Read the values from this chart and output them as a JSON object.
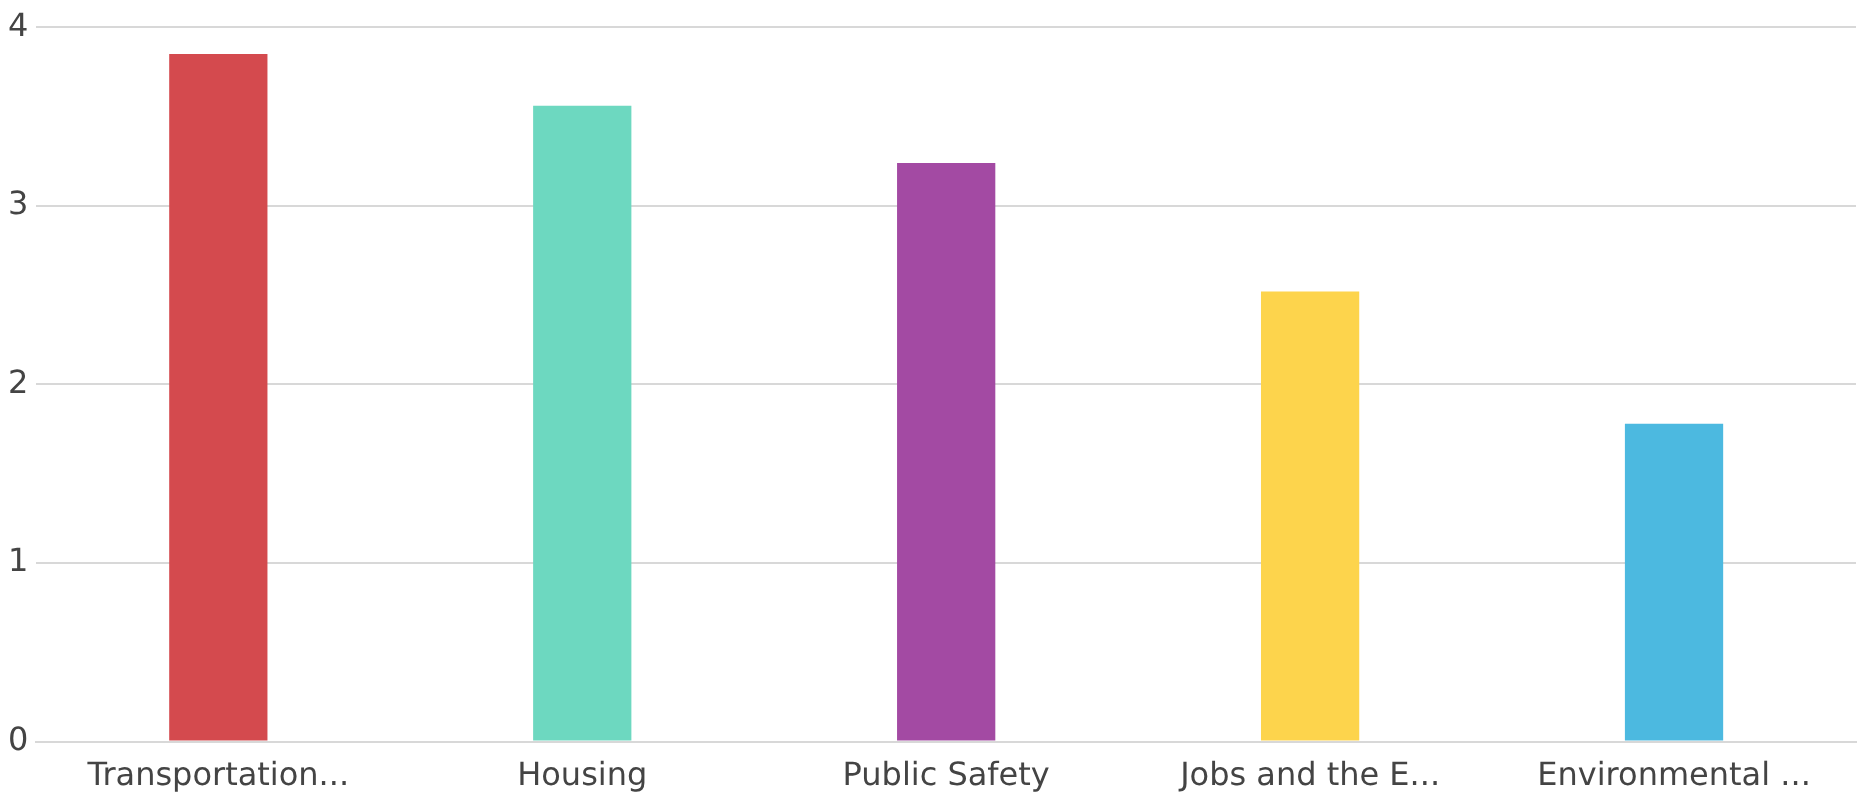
{
  "chart_data": {
    "type": "bar",
    "categories": [
      "Transportation...",
      "Housing",
      "Public Safety",
      "Jobs and the E...",
      "Environmental ..."
    ],
    "values": [
      3.85,
      3.56,
      3.24,
      2.52,
      1.78
    ],
    "colors": [
      "#d44a4e",
      "#6dd8c0",
      "#a34aa3",
      "#fdd44c",
      "#4cb9e0"
    ],
    "ylim": [
      0,
      4
    ],
    "yticks": [
      0,
      1,
      2,
      3,
      4
    ],
    "grid": "y",
    "legend": false
  }
}
